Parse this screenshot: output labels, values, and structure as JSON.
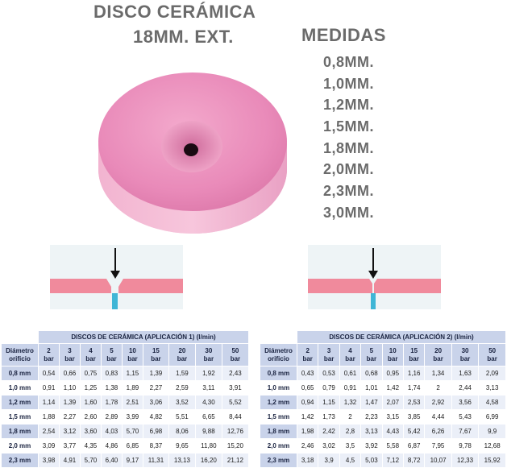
{
  "title": {
    "line1": "DISCO CERÁMICA",
    "line2": "18MM. EXT."
  },
  "medidas": {
    "title": "MEDIDAS",
    "sizes": [
      "0,8MM.",
      "1,0MM.",
      "1,2MM.",
      "1,5MM.",
      "1,8MM.",
      "2,0MM.",
      "2,3MM.",
      "3,0MM."
    ]
  },
  "colors": {
    "disc": "#e889b8",
    "table_header": "#c9d3ea",
    "table_row": "#ebeff8",
    "bar_pink": "#f08a9c",
    "jet": "#3fb6d6"
  },
  "table1": {
    "caption": "DISCOS DE CERÁMICA (APLICACIÓN 1) (l/min)",
    "corner": [
      "Diámetro",
      "orificio"
    ],
    "pressures": [
      "2",
      "3",
      "4",
      "5",
      "10",
      "15",
      "20",
      "30",
      "50"
    ],
    "unit": "bar",
    "rows": [
      {
        "label": "0,8 mm",
        "values": [
          "0,54",
          "0,66",
          "0,75",
          "0,83",
          "1,15",
          "1,39",
          "1,59",
          "1,92",
          "2,43"
        ]
      },
      {
        "label": "1,0 mm",
        "values": [
          "0,91",
          "1,10",
          "1,25",
          "1,38",
          "1,89",
          "2,27",
          "2,59",
          "3,11",
          "3,91"
        ]
      },
      {
        "label": "1,2 mm",
        "values": [
          "1,14",
          "1,39",
          "1,60",
          "1,78",
          "2,51",
          "3,06",
          "3,52",
          "4,30",
          "5,52"
        ]
      },
      {
        "label": "1,5 mm",
        "values": [
          "1,88",
          "2,27",
          "2,60",
          "2,89",
          "3,99",
          "4,82",
          "5,51",
          "6,65",
          "8,44"
        ]
      },
      {
        "label": "1,8 mm",
        "values": [
          "2,54",
          "3,12",
          "3,60",
          "4,03",
          "5,70",
          "6,98",
          "8,06",
          "9,88",
          "12,76"
        ]
      },
      {
        "label": "2,0 mm",
        "values": [
          "3,09",
          "3,77",
          "4,35",
          "4,86",
          "6,85",
          "8,37",
          "9,65",
          "11,80",
          "15,20"
        ]
      },
      {
        "label": "2,3 mm",
        "values": [
          "3,98",
          "4,91",
          "5,70",
          "6,40",
          "9,17",
          "11,31",
          "13,13",
          "16,20",
          "21,12"
        ]
      }
    ]
  },
  "table2": {
    "caption": "DISCOS DE CERÁMICA (APLICACIÓN 2) (l/min)",
    "corner": [
      "Diámetro",
      "orificio"
    ],
    "pressures": [
      "2",
      "3",
      "4",
      "5",
      "10",
      "15",
      "20",
      "30",
      "50"
    ],
    "unit": "bar",
    "rows": [
      {
        "label": "0,8 mm",
        "values": [
          "0,43",
          "0,53",
          "0,61",
          "0,68",
          "0,95",
          "1,16",
          "1,34",
          "1,63",
          "2,09"
        ]
      },
      {
        "label": "1,0 mm",
        "values": [
          "0,65",
          "0,79",
          "0,91",
          "1,01",
          "1,42",
          "1,74",
          "2",
          "2,44",
          "3,13"
        ]
      },
      {
        "label": "1,2 mm",
        "values": [
          "0,94",
          "1,15",
          "1,32",
          "1,47",
          "2,07",
          "2,53",
          "2,92",
          "3,56",
          "4,58"
        ]
      },
      {
        "label": "1,5 mm",
        "values": [
          "1,42",
          "1,73",
          "2",
          "2,23",
          "3,15",
          "3,85",
          "4,44",
          "5,43",
          "6,99"
        ]
      },
      {
        "label": "1,8 mm",
        "values": [
          "1,98",
          "2,42",
          "2,8",
          "3,13",
          "4,43",
          "5,42",
          "6,26",
          "7,67",
          "9,9"
        ]
      },
      {
        "label": "2,0 mm",
        "values": [
          "2,46",
          "3,02",
          "3,5",
          "3,92",
          "5,58",
          "6,87",
          "7,95",
          "9,78",
          "12,68"
        ]
      },
      {
        "label": "2,3 mm",
        "values": [
          "3,18",
          "3,9",
          "4,5",
          "5,03",
          "7,12",
          "8,72",
          "10,07",
          "12,33",
          "15,92"
        ]
      }
    ]
  }
}
